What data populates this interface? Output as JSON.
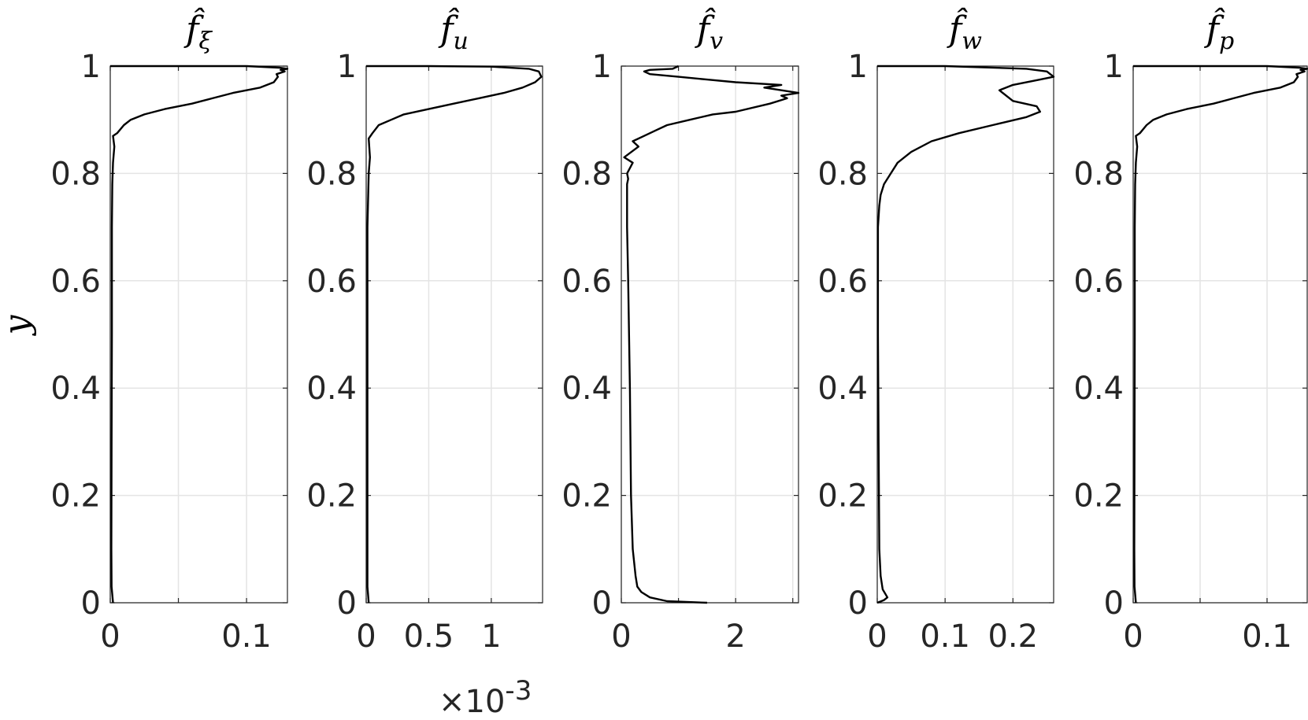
{
  "chart_data": [
    {
      "type": "line",
      "title": {
        "main": "f̂",
        "sub": "ξ"
      },
      "ylabel": "y",
      "xlim": [
        0,
        0.13
      ],
      "ylim": [
        0,
        1
      ],
      "x_ticks": [
        0,
        0.05,
        0.1
      ],
      "x_tick_labels": [
        "0",
        "",
        "0.1"
      ],
      "y_ticks": [
        0,
        0.2,
        0.4,
        0.6,
        0.8,
        1
      ],
      "y_tick_labels": [
        "0",
        "0.2",
        "0.4",
        "0.6",
        "0.8",
        "1"
      ],
      "grid": true,
      "series": [
        {
          "x": [
            0.002,
            0.001,
            0.0008,
            0.001,
            0.0012,
            0.0012,
            0.0015,
            0.002,
            0.003,
            0.002,
            0.005,
            0.01,
            0.015,
            0.025,
            0.04,
            0.06,
            0.075,
            0.09,
            0.1,
            0.11,
            0.12,
            0.123,
            0.122,
            0.128,
            0.125,
            0.13,
            0.124,
            0.1,
            0.05,
            0.0
          ],
          "y": [
            0.0,
            0.03,
            0.1,
            0.3,
            0.5,
            0.7,
            0.78,
            0.82,
            0.85,
            0.87,
            0.875,
            0.89,
            0.9,
            0.91,
            0.92,
            0.93,
            0.94,
            0.95,
            0.955,
            0.96,
            0.97,
            0.98,
            0.985,
            0.99,
            0.993,
            0.995,
            0.997,
            1.0,
            1.0,
            1.0
          ]
        }
      ]
    },
    {
      "type": "line",
      "title": {
        "main": "f̂",
        "sub": "u"
      },
      "xlim": [
        0,
        0.00141
      ],
      "ylim": [
        0,
        1
      ],
      "x_ticks": [
        0,
        0.0005,
        0.001
      ],
      "x_tick_labels": [
        "0",
        "0.5",
        "1"
      ],
      "x_multiplier": "×10",
      "x_multiplier_exp": "-3",
      "y_ticks": [
        0,
        0.2,
        0.4,
        0.6,
        0.8,
        1
      ],
      "y_tick_labels": [
        "0",
        "0.2",
        "0.4",
        "0.6",
        "0.8",
        "1"
      ],
      "grid": true,
      "series": [
        {
          "x": [
            2e-05,
            1e-05,
            1e-05,
            1e-05,
            1e-05,
            2e-05,
            3e-05,
            2e-05,
            5e-05,
            0.0001,
            0.0002,
            0.0003,
            0.0005,
            0.0007,
            0.0009,
            0.0011,
            0.00125,
            0.00135,
            0.0014,
            0.00138,
            0.0013,
            0.001,
            0.0005,
            0.0
          ],
          "y": [
            0.0,
            0.03,
            0.1,
            0.4,
            0.7,
            0.8,
            0.83,
            0.865,
            0.875,
            0.89,
            0.9,
            0.91,
            0.92,
            0.93,
            0.94,
            0.95,
            0.96,
            0.97,
            0.98,
            0.99,
            0.995,
            0.999,
            1.0,
            1.0
          ]
        }
      ]
    },
    {
      "type": "line",
      "title": {
        "main": "f̂",
        "sub": "v"
      },
      "xlim": [
        0,
        3.1
      ],
      "ylim": [
        0,
        1
      ],
      "x_ticks": [
        0,
        1,
        2,
        3
      ],
      "x_tick_labels": [
        "0",
        "",
        "2",
        ""
      ],
      "y_ticks": [
        0,
        0.2,
        0.4,
        0.6,
        0.8,
        1
      ],
      "y_tick_labels": [
        "0",
        "0.2",
        "0.4",
        "0.6",
        "0.8",
        "1"
      ],
      "grid": true,
      "series": [
        {
          "x": [
            1.5,
            0.8,
            0.5,
            0.35,
            0.28,
            0.25,
            0.2,
            0.17,
            0.15,
            0.12,
            0.1,
            0.1,
            0.1,
            0.1,
            0.12,
            0.1,
            0.2,
            0.05,
            0.3,
            0.2,
            0.4,
            0.6,
            0.8,
            1.2,
            1.6,
            2.0,
            2.6,
            2.9,
            2.8,
            3.1,
            2.5,
            2.8,
            2.0,
            1.5,
            1.0,
            0.5,
            0.4,
            0.5,
            0.9,
            1.0
          ],
          "y": [
            0.0,
            0.003,
            0.01,
            0.02,
            0.03,
            0.05,
            0.1,
            0.2,
            0.4,
            0.6,
            0.7,
            0.75,
            0.76,
            0.78,
            0.79,
            0.8,
            0.82,
            0.83,
            0.85,
            0.86,
            0.87,
            0.88,
            0.89,
            0.9,
            0.91,
            0.915,
            0.93,
            0.94,
            0.945,
            0.95,
            0.96,
            0.965,
            0.97,
            0.975,
            0.98,
            0.985,
            0.99,
            0.993,
            0.995,
            1.0
          ]
        }
      ]
    },
    {
      "type": "line",
      "title": {
        "main": "f̂",
        "sub": "w"
      },
      "xlim": [
        0,
        0.26
      ],
      "ylim": [
        0,
        1
      ],
      "x_ticks": [
        0,
        0.1,
        0.2
      ],
      "x_tick_labels": [
        "0",
        "0.1",
        "0.2"
      ],
      "y_ticks": [
        0,
        0.2,
        0.4,
        0.6,
        0.8,
        1
      ],
      "y_tick_labels": [
        "0",
        "0.2",
        "0.4",
        "0.6",
        "0.8",
        "1"
      ],
      "grid": true,
      "series": [
        {
          "x": [
            0.0,
            0.01,
            0.015,
            0.008,
            0.005,
            0.003,
            0.002,
            0.001,
            0.001,
            0.003,
            0.005,
            0.01,
            0.02,
            0.03,
            0.05,
            0.08,
            0.12,
            0.17,
            0.22,
            0.24,
            0.235,
            0.2,
            0.18,
            0.2,
            0.24,
            0.26,
            0.25,
            0.22,
            0.1,
            0.0
          ],
          "y": [
            0.0,
            0.005,
            0.01,
            0.025,
            0.05,
            0.1,
            0.3,
            0.5,
            0.7,
            0.74,
            0.76,
            0.78,
            0.8,
            0.82,
            0.84,
            0.86,
            0.875,
            0.89,
            0.905,
            0.915,
            0.925,
            0.935,
            0.955,
            0.965,
            0.975,
            0.98,
            0.99,
            0.995,
            1.0,
            1.0
          ]
        }
      ]
    },
    {
      "type": "line",
      "title": {
        "main": "f̂",
        "sub": "p"
      },
      "xlim": [
        0,
        0.13
      ],
      "ylim": [
        0,
        1
      ],
      "x_ticks": [
        0,
        0.05,
        0.1
      ],
      "x_tick_labels": [
        "0",
        "",
        "0.1"
      ],
      "y_ticks": [
        0,
        0.2,
        0.4,
        0.6,
        0.8,
        1
      ],
      "y_tick_labels": [
        "0",
        "0.2",
        "0.4",
        "0.6",
        "0.8",
        "1"
      ],
      "grid": true,
      "series": [
        {
          "x": [
            0.002,
            0.001,
            0.0008,
            0.001,
            0.0012,
            0.0012,
            0.0015,
            0.002,
            0.003,
            0.002,
            0.005,
            0.01,
            0.015,
            0.025,
            0.04,
            0.06,
            0.075,
            0.09,
            0.1,
            0.11,
            0.12,
            0.123,
            0.122,
            0.128,
            0.125,
            0.13,
            0.124,
            0.1,
            0.05,
            0.0
          ],
          "y": [
            0.0,
            0.03,
            0.1,
            0.3,
            0.5,
            0.7,
            0.78,
            0.82,
            0.85,
            0.87,
            0.875,
            0.89,
            0.9,
            0.91,
            0.92,
            0.93,
            0.94,
            0.95,
            0.955,
            0.96,
            0.97,
            0.98,
            0.985,
            0.99,
            0.993,
            0.995,
            0.997,
            1.0,
            1.0,
            1.0
          ]
        }
      ]
    }
  ]
}
